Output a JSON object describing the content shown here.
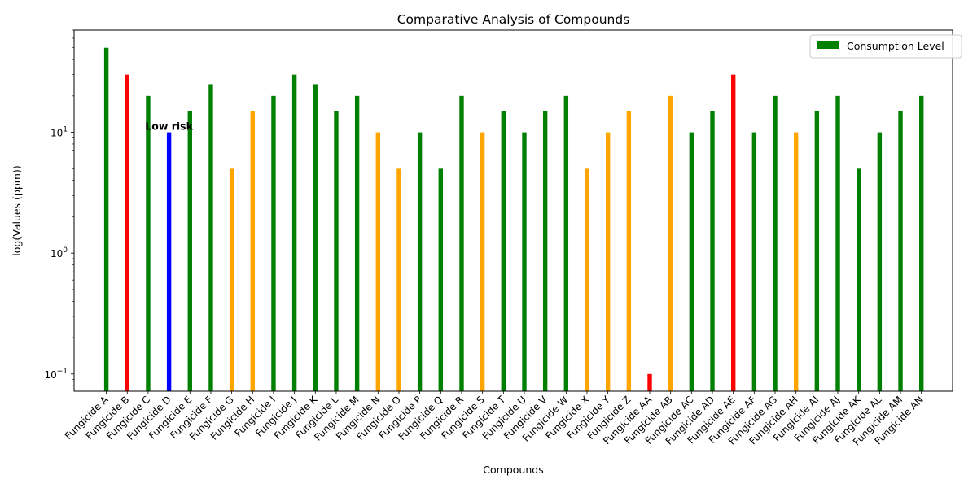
{
  "chart_data": {
    "type": "bar",
    "title": "Comparative Analysis of Compounds",
    "xlabel": "Compounds",
    "ylabel": "log(Values (ppm))",
    "yscale": "log",
    "ylim": [
      0.072,
      70
    ],
    "yticks": [
      {
        "value": 0.1,
        "base": "10",
        "exp": "−1"
      },
      {
        "value": 1,
        "base": "10",
        "exp": "0"
      },
      {
        "value": 10,
        "base": "10",
        "exp": "1"
      }
    ],
    "legend": {
      "placement": "top-right",
      "entries": [
        {
          "label": "Consumption Level",
          "color": "#008000"
        }
      ]
    },
    "annotations": [
      {
        "text": "Low risk",
        "category": "Fungicide D",
        "value": 10
      }
    ],
    "categories": [
      "Fungicide A",
      "Fungicide B",
      "Fungicide C",
      "Fungicide D",
      "Fungicide E",
      "Fungicide F",
      "Fungicide G",
      "Fungicide H",
      "Fungicide I",
      "Fungicide J",
      "Fungicide K",
      "Fungicide L",
      "Fungicide M",
      "Fungicide N",
      "Fungicide O",
      "Fungicide P",
      "Fungicide Q",
      "Fungicide R",
      "Fungicide S",
      "Fungicide T",
      "Fungicide U",
      "Fungicide V",
      "Fungicide W",
      "Fungicide X",
      "Fungicide Y",
      "Fungicide Z",
      "Fungicide AA",
      "Fungicide AB",
      "Fungicide AC",
      "Fungicide AD",
      "Fungicide AE",
      "Fungicide AF",
      "Fungicide AG",
      "Fungicide AH",
      "Fungicide AI",
      "Fungicide AJ",
      "Fungicide AK",
      "Fungicide AL",
      "Fungicide AM",
      "Fungicide AN"
    ],
    "values": [
      50,
      30,
      20,
      10,
      15,
      25,
      5,
      15,
      20,
      30,
      25,
      15,
      20,
      10,
      5,
      10,
      5,
      20,
      10,
      15,
      10,
      15,
      20,
      5,
      10,
      15,
      0.1,
      20,
      10,
      15,
      30,
      10,
      20,
      10,
      15,
      20,
      5,
      10,
      15,
      20
    ],
    "colors": [
      "#008000",
      "#ff0000",
      "#008000",
      "#0000ff",
      "#008000",
      "#008000",
      "#ffa500",
      "#ffa500",
      "#008000",
      "#008000",
      "#008000",
      "#008000",
      "#008000",
      "#ffa500",
      "#ffa500",
      "#008000",
      "#008000",
      "#008000",
      "#ffa500",
      "#008000",
      "#008000",
      "#008000",
      "#008000",
      "#ffa500",
      "#ffa500",
      "#ffa500",
      "#ff0000",
      "#ffa500",
      "#008000",
      "#008000",
      "#ff0000",
      "#008000",
      "#008000",
      "#ffa500",
      "#008000",
      "#008000",
      "#008000",
      "#008000",
      "#008000",
      "#008000"
    ]
  }
}
